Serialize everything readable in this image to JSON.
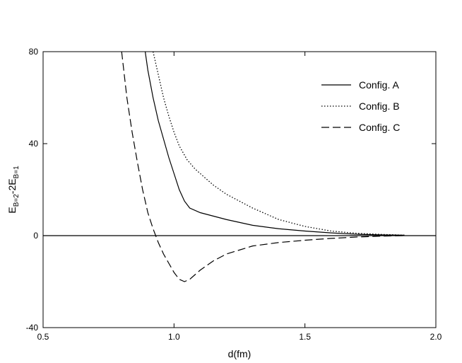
{
  "chart_data": {
    "type": "line",
    "title": "",
    "xlabel": "d(fm)",
    "ylabel_main": "E",
    "ylabel_sub1": "B=2",
    "ylabel_mid": "-2E",
    "ylabel_sub2": "B=1",
    "xlim": [
      0.5,
      2.0
    ],
    "ylim": [
      -40,
      80
    ],
    "x_ticks": [
      0.5,
      1.0,
      1.5,
      2.0
    ],
    "x_tick_labels": [
      "0.5",
      "1.0",
      "1.5",
      "2.0"
    ],
    "y_ticks": [
      -40,
      0,
      40,
      80
    ],
    "y_tick_labels": [
      "-40",
      "0",
      "40",
      "80"
    ],
    "zero_line": true,
    "grid": false,
    "legend_position": "top-right",
    "series": [
      {
        "name": "Config. A",
        "style": "solid",
        "x": [
          0.89,
          0.9,
          0.92,
          0.94,
          0.96,
          0.98,
          1.0,
          1.02,
          1.04,
          1.06,
          1.1,
          1.15,
          1.2,
          1.3,
          1.4,
          1.5,
          1.6,
          1.7,
          1.8,
          1.88
        ],
        "y": [
          80,
          72,
          60,
          50,
          42,
          34,
          27,
          20,
          15,
          12,
          10,
          8.5,
          7,
          4.5,
          3,
          2,
          1.2,
          0.6,
          0.3,
          0.2
        ]
      },
      {
        "name": "Config. B",
        "style": "dotted",
        "x": [
          0.92,
          0.94,
          0.96,
          0.98,
          1.0,
          1.02,
          1.05,
          1.08,
          1.1,
          1.15,
          1.2,
          1.3,
          1.4,
          1.5,
          1.6,
          1.7,
          1.8,
          1.88
        ],
        "y": [
          80,
          70,
          60,
          52,
          45,
          39,
          33,
          29,
          27,
          22,
          18,
          12,
          7,
          4,
          2,
          1,
          0.5,
          0.2
        ]
      },
      {
        "name": "Config. C",
        "style": "dashed",
        "x": [
          0.8,
          0.82,
          0.84,
          0.86,
          0.88,
          0.9,
          0.92,
          0.94,
          0.96,
          0.98,
          1.0,
          1.02,
          1.04,
          1.06,
          1.08,
          1.1,
          1.15,
          1.2,
          1.3,
          1.4,
          1.5,
          1.6,
          1.7,
          1.8,
          1.88
        ],
        "y": [
          80,
          60,
          45,
          32,
          20,
          10,
          3,
          -3,
          -8,
          -12,
          -16,
          -19,
          -20,
          -19,
          -17,
          -15,
          -11,
          -8,
          -4.5,
          -3,
          -2,
          -1.2,
          -0.6,
          -0.2,
          0
        ]
      }
    ]
  }
}
